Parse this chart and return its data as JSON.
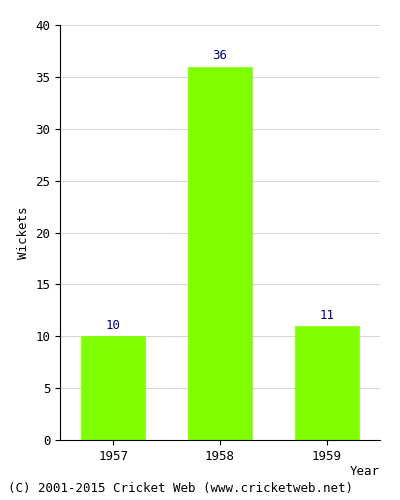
{
  "categories": [
    "1957",
    "1958",
    "1959"
  ],
  "values": [
    10,
    36,
    11
  ],
  "bar_color": "#7fff00",
  "bar_edgecolor": "#7fff00",
  "label_color": "#00008b",
  "xlabel": "Year",
  "ylabel": "Wickets",
  "ylim": [
    0,
    40
  ],
  "yticks": [
    0,
    5,
    10,
    15,
    20,
    25,
    30,
    35,
    40
  ],
  "label_fontsize": 9,
  "axis_label_fontsize": 9,
  "tick_fontsize": 9,
  "footer": "(C) 2001-2015 Cricket Web (www.cricketweb.net)",
  "footer_fontsize": 9,
  "bar_width": 0.6
}
